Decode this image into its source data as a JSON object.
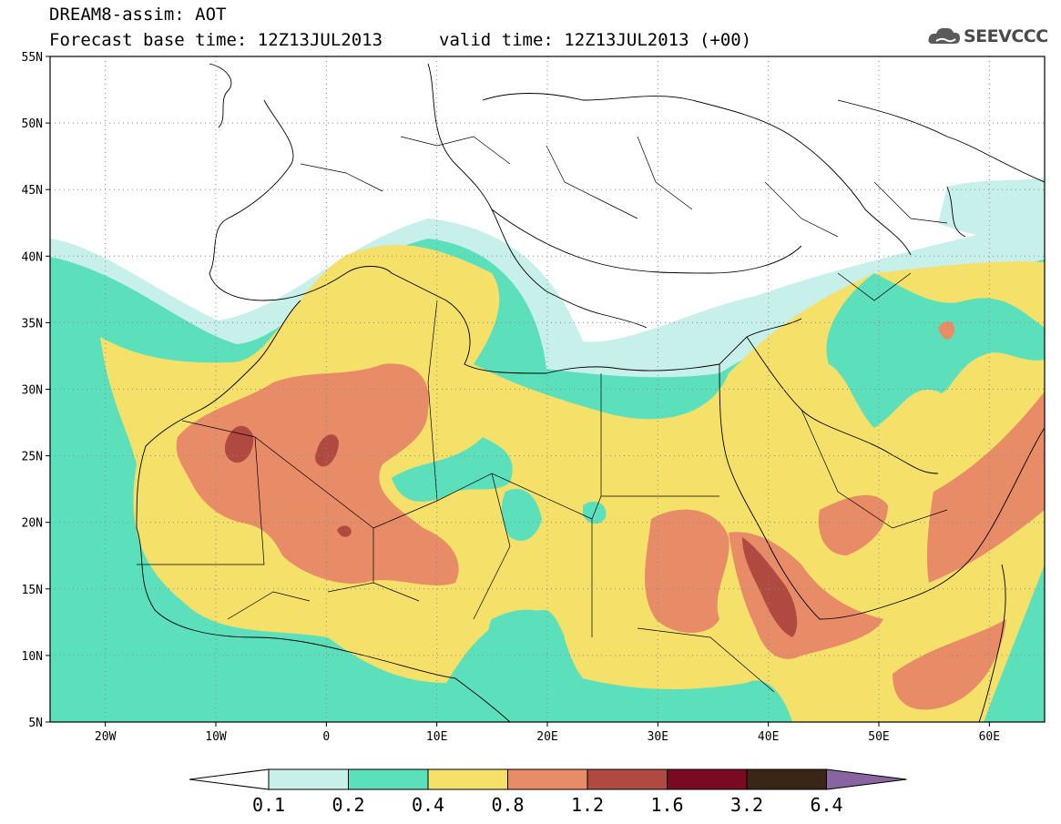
{
  "header": {
    "title": "DREAM8-assim: AOT",
    "base_time": "Forecast base time: 12Z13JUL2013",
    "valid_time": "valid time: 12Z13JUL2013 (+00)",
    "logo_text": "SEEVCCC",
    "logo_icon": "cloud-icon"
  },
  "map": {
    "lon_range": [
      -25,
      65
    ],
    "lat_range": [
      5,
      55
    ],
    "lat_labels": [
      "55N",
      "50N",
      "45N",
      "40N",
      "35N",
      "30N",
      "25N",
      "20N",
      "15N",
      "10N",
      "5N"
    ],
    "lon_labels": [
      "20W",
      "10W",
      "0",
      "10E",
      "20E",
      "30E",
      "40E",
      "50E",
      "60E"
    ],
    "gridlines": "dotted"
  },
  "colorbar": {
    "levels": [
      "0.1",
      "0.2",
      "0.4",
      "0.8",
      "1.2",
      "1.6",
      "3.2",
      "6.4"
    ],
    "colors": [
      "#ffffff",
      "#c8f0ea",
      "#5ce0bb",
      "#f5e06a",
      "#e88c68",
      "#b04a40",
      "#7a0a22",
      "#3a2616",
      "#8a64a0"
    ]
  },
  "colors": {
    "c0": "#c8f0ea",
    "c1": "#5ce0bb",
    "c2": "#f5e06a",
    "c3": "#e88c68",
    "c4": "#b04a40"
  }
}
